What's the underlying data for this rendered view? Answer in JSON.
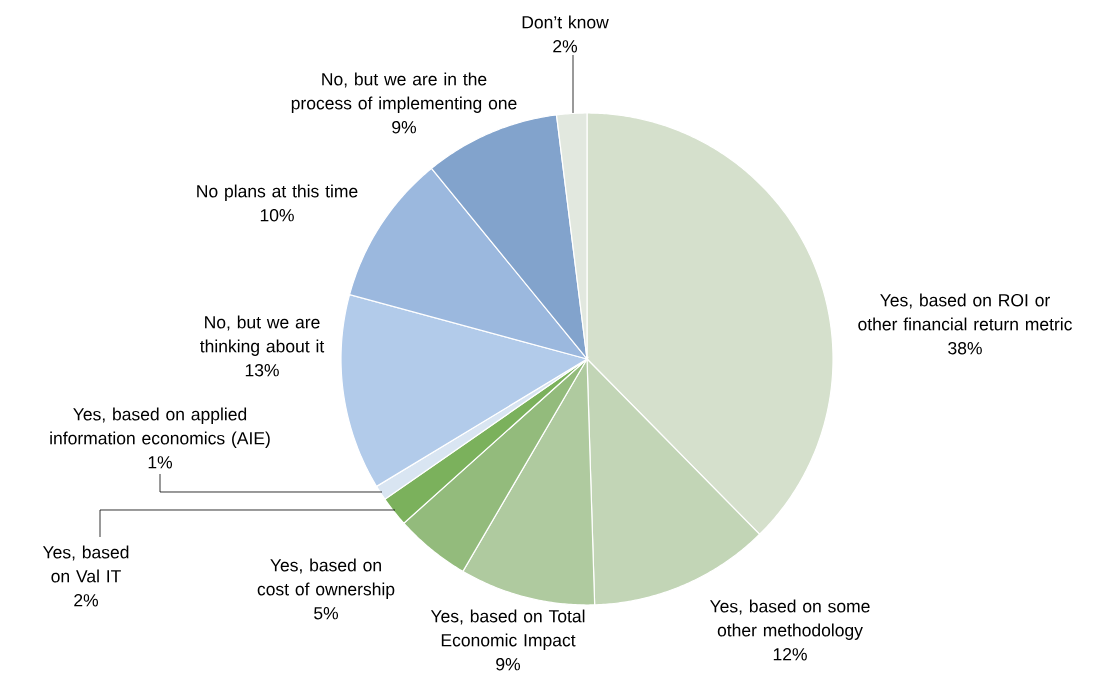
{
  "chart_data": {
    "type": "pie",
    "categories": [
      "Yes, based on ROI or other financial return metric",
      "Yes, based on some other methodology",
      "Yes, based on Total Economic Impact",
      "Yes, based on cost of ownership",
      "Yes, based on Val IT",
      "Yes, based on applied information economics (AIE)",
      "No, but we are thinking about it",
      "No plans at this time",
      "No, but we are in the process of implementing one",
      "Don’t know"
    ],
    "values": [
      38,
      12,
      9,
      5,
      2,
      1,
      13,
      10,
      9,
      2
    ],
    "value_labels": [
      "38%",
      "12%",
      "9%",
      "5%",
      "2%",
      "1%",
      "13%",
      "10%",
      "9%",
      "2%"
    ],
    "colors": [
      "#d5e0cc",
      "#c2d5b6",
      "#afca9f",
      "#93bb7c",
      "#7bb15c",
      "#d9e5f2",
      "#b2cbea",
      "#9bb8de",
      "#82a3cc",
      "#e2e8df"
    ]
  }
}
